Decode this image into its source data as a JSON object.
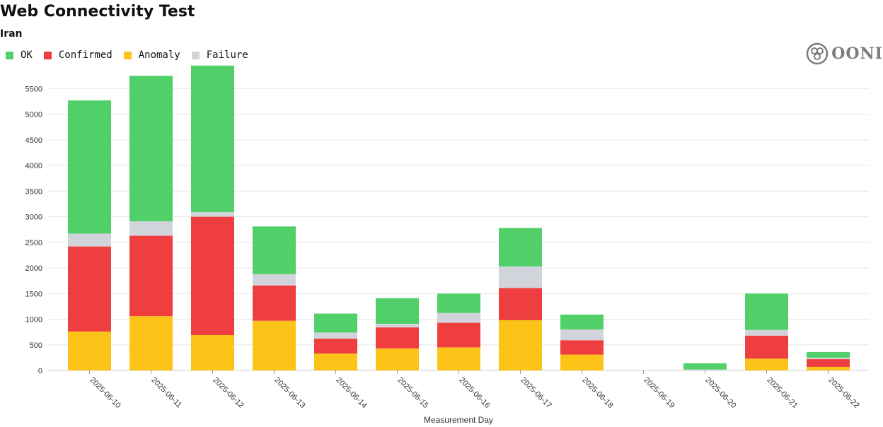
{
  "header": {
    "title": "Web Connectivity Test",
    "subtitle": "Iran"
  },
  "legend": [
    {
      "label": "OK",
      "color": "#51d06a"
    },
    {
      "label": "Confirmed",
      "color": "#ef3e3f"
    },
    {
      "label": "Anomaly",
      "color": "#fcc419"
    },
    {
      "label": "Failure",
      "color": "#d1d5db"
    }
  ],
  "brand": {
    "name": "OONI",
    "icon": "ooni-logo-icon"
  },
  "chart_data": {
    "type": "bar",
    "stacked": true,
    "title": "Web Connectivity Test",
    "subtitle": "Iran",
    "xlabel": "Measurement Day",
    "ylabel": "",
    "ylim": [
      0,
      5850
    ],
    "yticks": [
      0,
      500,
      1000,
      1500,
      2000,
      2500,
      3000,
      3500,
      4000,
      4500,
      5000,
      5500
    ],
    "grid": true,
    "legend_position": "top-left",
    "categories": [
      "2025-06-10",
      "2025-06-11",
      "2025-06-12",
      "2025-06-13",
      "2025-06-14",
      "2025-06-15",
      "2025-06-16",
      "2025-06-17",
      "2025-06-18",
      "2025-06-19",
      "2025-06-20",
      "2025-06-21",
      "2025-06-22"
    ],
    "series": [
      {
        "name": "Anomaly",
        "color": "#fcc419",
        "values": [
          760,
          1060,
          690,
          970,
          330,
          430,
          450,
          980,
          310,
          0,
          0,
          230,
          70
        ]
      },
      {
        "name": "Confirmed",
        "color": "#ef3e3f",
        "values": [
          1660,
          1570,
          2310,
          690,
          290,
          410,
          480,
          630,
          280,
          0,
          0,
          450,
          150
        ]
      },
      {
        "name": "Failure",
        "color": "#d1d5db",
        "values": [
          250,
          280,
          90,
          220,
          120,
          70,
          190,
          420,
          210,
          0,
          20,
          110,
          30
        ]
      },
      {
        "name": "OK",
        "color": "#51d06a",
        "values": [
          2600,
          2840,
          2860,
          930,
          370,
          500,
          380,
          750,
          290,
          0,
          120,
          710,
          110
        ]
      }
    ]
  }
}
